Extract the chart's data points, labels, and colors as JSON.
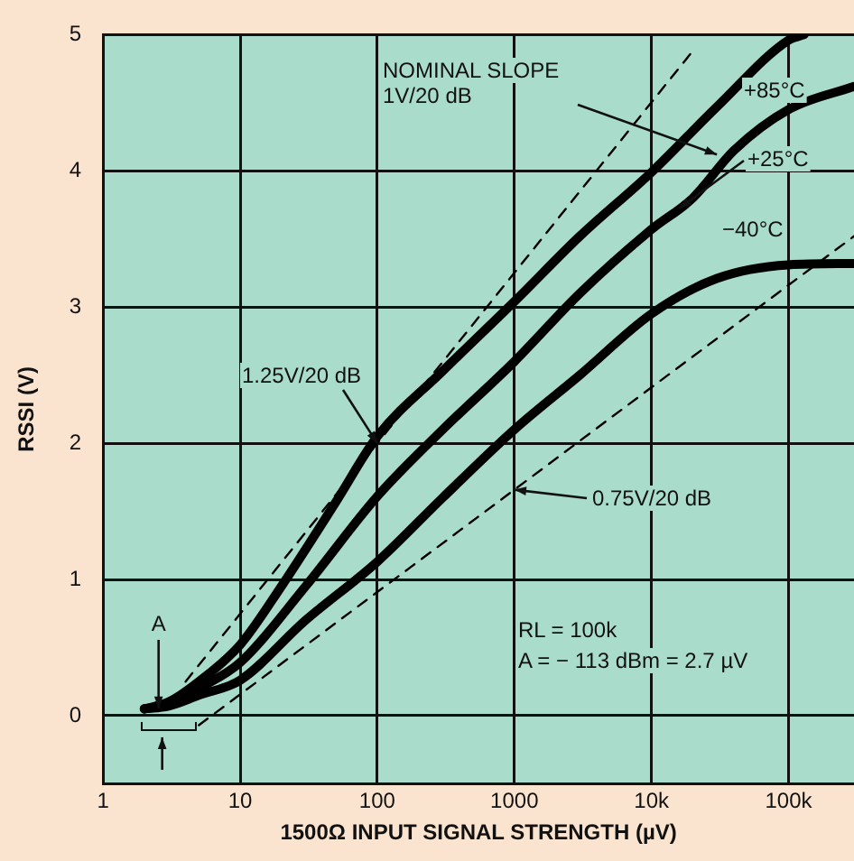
{
  "chart_data": {
    "type": "line",
    "xlabel": "1500Ω INPUT SIGNAL STRENGTH (µV)",
    "ylabel": "RSSI (V)",
    "log": "x",
    "xlim": [
      1,
      300000
    ],
    "ylim": [
      -0.5,
      5
    ],
    "xticks": [
      1,
      10,
      100,
      1000,
      {
        "value": 10000,
        "label": "10k"
      },
      {
        "value": 100000,
        "label": "100k"
      }
    ],
    "yticks": [
      0,
      1,
      2,
      3,
      4,
      5
    ],
    "grid": true,
    "marker": "none",
    "series": [
      {
        "name": "+85°C",
        "color": "#000000",
        "line_style": "solid",
        "x": [
          2,
          3,
          5,
          10,
          20,
          50,
          100,
          300,
          1000,
          3000,
          10000,
          30000,
          100000,
          130000
        ],
        "values": [
          0.05,
          0.1,
          0.25,
          0.52,
          0.95,
          1.57,
          2.05,
          2.53,
          3.04,
          3.52,
          3.99,
          4.47,
          4.96,
          5
        ]
      },
      {
        "name": "+25°C",
        "color": "#000000",
        "line_style": "solid",
        "x": [
          2,
          3,
          5,
          10,
          30,
          100,
          300,
          1000,
          3000,
          10000,
          20000,
          40000,
          100000,
          300000
        ],
        "values": [
          0.05,
          0.08,
          0.2,
          0.39,
          0.95,
          1.61,
          2.1,
          2.6,
          3.1,
          3.57,
          3.8,
          4.15,
          4.45,
          4.62
        ]
      },
      {
        "name": "−40°C",
        "color": "#000000",
        "line_style": "solid",
        "x": [
          2,
          3,
          5,
          10,
          30,
          100,
          300,
          1000,
          3000,
          10000,
          30000,
          100000,
          300000
        ],
        "values": [
          0.05,
          0.07,
          0.15,
          0.26,
          0.7,
          1.13,
          1.6,
          2.1,
          2.5,
          2.95,
          3.21,
          3.31,
          3.32
        ]
      },
      {
        "name": "1.25V/20 dB",
        "color": "#000000",
        "line_style": "dashed",
        "x": [
          4,
          20000
        ],
        "values": [
          0.25,
          4.88
        ]
      },
      {
        "name": "0.75V/20 dB",
        "color": "#000000",
        "line_style": "dashed",
        "x": [
          5,
          300000
        ],
        "values": [
          -0.07,
          3.52
        ]
      }
    ],
    "annotations": [
      {
        "text": "A",
        "x": 2.7,
        "y": 0
      },
      {
        "text": "NOMINAL SLOPE\n1V/20 dB",
        "x": 30000,
        "y": 4.12
      },
      "RL = 100k\nA = − 113 dBm = 2.7 µV"
    ]
  }
}
